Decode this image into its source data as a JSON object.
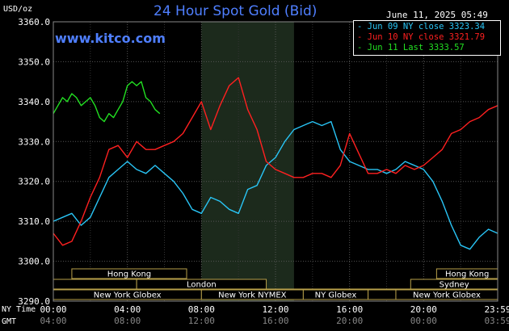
{
  "header": {
    "title": "24 Hour Spot Gold (Bid)",
    "timestamp": "June 11, 2025 05:49",
    "unit": "USD/oz",
    "brand": "www.kitco.com"
  },
  "axis_tags": {
    "ny_time": "NY Time",
    "gmt": "GMT"
  },
  "legend": [
    {
      "label": "- Jun 09 NY close 3323.34",
      "color": "#29c5f6"
    },
    {
      "label": "- Jun 10 NY close 3321.79",
      "color": "#ff2020"
    },
    {
      "label": "- Jun 11 Last 3333.57",
      "color": "#22e022"
    }
  ],
  "chart_data": {
    "type": "line",
    "title": "24 Hour Spot Gold (Bid)",
    "ylabel": "USD/oz",
    "ylim": [
      3290,
      3360
    ],
    "y_ticks": [
      3290,
      3300,
      3310,
      3320,
      3330,
      3340,
      3350,
      3360
    ],
    "y_tick_labels": [
      "3290.0",
      "3300.0",
      "3310.0",
      "3320.0",
      "3330.0",
      "3340.0",
      "3350.0",
      "3360.0"
    ],
    "xlim": [
      0,
      24
    ],
    "x_ticks": [
      0,
      4,
      8,
      12,
      16,
      20,
      24
    ],
    "x_tick_labels_ny": [
      "00:00",
      "04:00",
      "08:00",
      "12:00",
      "16:00",
      "20:00",
      "23:59"
    ],
    "x_tick_labels_gmt": [
      "04:00",
      "08:00",
      "12:00",
      "16:00",
      "20:00",
      "00:00",
      "03:59"
    ],
    "grid": true,
    "legend_position": "top-right",
    "shaded_band_hours": [
      8,
      13
    ],
    "series": [
      {
        "name": "Jun 09 NY close 3323.34",
        "color": "#29c5f6",
        "x": [
          0,
          0.5,
          1,
          1.5,
          2,
          2.5,
          3,
          3.5,
          4,
          4.5,
          5,
          5.5,
          6,
          6.5,
          7,
          7.5,
          8,
          8.5,
          9,
          9.5,
          10,
          10.5,
          11,
          11.5,
          12,
          12.5,
          13,
          13.5,
          14,
          14.5,
          15,
          15.5,
          16,
          16.5,
          17,
          17.5,
          18,
          18.5,
          19,
          19.5,
          20,
          20.5,
          21,
          21.5,
          22,
          22.5,
          23,
          23.5,
          24
        ],
        "y": [
          3310,
          3311,
          3312,
          3309,
          3311,
          3316,
          3321,
          3323,
          3325,
          3323,
          3322,
          3324,
          3322,
          3320,
          3317,
          3313,
          3312,
          3316,
          3315,
          3313,
          3312,
          3318,
          3319,
          3324,
          3326,
          3330,
          3333,
          3334,
          3335,
          3334,
          3335,
          3328,
          3325,
          3324,
          3323,
          3323,
          3322,
          3323,
          3325,
          3324,
          3323,
          3320,
          3315,
          3309,
          3304,
          3303,
          3306,
          3308,
          3307
        ]
      },
      {
        "name": "Jun 10 NY close 3321.79",
        "color": "#ff2020",
        "x": [
          0,
          0.5,
          1,
          1.5,
          2,
          2.5,
          3,
          3.5,
          4,
          4.5,
          5,
          5.5,
          6,
          6.5,
          7,
          7.5,
          8,
          8.5,
          9,
          9.5,
          10,
          10.5,
          11,
          11.5,
          12,
          12.5,
          13,
          13.5,
          14,
          14.5,
          15,
          15.5,
          16,
          16.5,
          17,
          17.5,
          18,
          18.5,
          19,
          19.5,
          20,
          20.5,
          21,
          21.5,
          22,
          22.5,
          23,
          23.5,
          24
        ],
        "y": [
          3307,
          3304,
          3305,
          3310,
          3316,
          3321,
          3328,
          3329,
          3326,
          3330,
          3328,
          3328,
          3329,
          3330,
          3332,
          3336,
          3340,
          3333,
          3339,
          3344,
          3346,
          3338,
          3333,
          3325,
          3323,
          3322,
          3321,
          3321,
          3322,
          3322,
          3321,
          3324,
          3332,
          3327,
          3322,
          3322,
          3323,
          3322,
          3324,
          3323,
          3324,
          3326,
          3328,
          3332,
          3333,
          3335,
          3336,
          3338,
          3339
        ]
      },
      {
        "name": "Jun 11 Last 3333.57",
        "color": "#22e022",
        "x": [
          0,
          0.25,
          0.5,
          0.75,
          1,
          1.25,
          1.5,
          1.75,
          2,
          2.25,
          2.5,
          2.75,
          3,
          3.25,
          3.5,
          3.75,
          4,
          4.25,
          4.5,
          4.75,
          5,
          5.25,
          5.5,
          5.75
        ],
        "y": [
          3337,
          3339,
          3341,
          3340,
          3342,
          3341,
          3339,
          3340,
          3341,
          3339,
          3336,
          3335,
          3337,
          3336,
          3338,
          3340,
          3344,
          3345,
          3344,
          3345,
          3341,
          3340,
          3338,
          3337
        ]
      }
    ],
    "session_bars": [
      {
        "row": 1,
        "start_hour": 1,
        "end_hour": 7.2,
        "label": "Hong Kong"
      },
      {
        "row": 1,
        "start_hour": 20.7,
        "end_hour": 24,
        "label": "Hong Kong"
      },
      {
        "row": 2,
        "start_hour": 0,
        "end_hour": 4.5,
        "label": ""
      },
      {
        "row": 2,
        "start_hour": 4.5,
        "end_hour": 11.5,
        "label": "London"
      },
      {
        "row": 2,
        "start_hour": 19.3,
        "end_hour": 24,
        "label": "Sydney"
      },
      {
        "row": 3,
        "start_hour": 0,
        "end_hour": 4.5,
        "label": ""
      },
      {
        "row": 3,
        "start_hour": 4.5,
        "end_hour": 20,
        "label": ""
      },
      {
        "row": 3,
        "start_hour": 20.6,
        "end_hour": 24,
        "label": ""
      },
      {
        "row": 4,
        "start_hour": 0,
        "end_hour": 8,
        "label": "New York Globex"
      },
      {
        "row": 4,
        "start_hour": 8,
        "end_hour": 13.5,
        "label": "New York NYMEX"
      },
      {
        "row": 4,
        "start_hour": 13.5,
        "end_hour": 17,
        "label": "NY Globex"
      },
      {
        "row": 4,
        "start_hour": 17,
        "end_hour": 18.5,
        "label": ""
      },
      {
        "row": 4,
        "start_hour": 18.5,
        "end_hour": 24,
        "label": "New York Globex"
      }
    ]
  }
}
